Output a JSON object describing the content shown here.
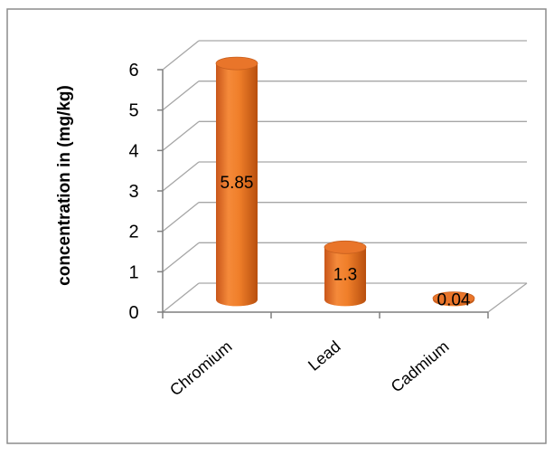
{
  "chart_data": {
    "type": "bar",
    "style": "3d-cylinder",
    "title": "",
    "xlabel": "",
    "ylabel": "concentration in (mg/kg)",
    "categories": [
      "Chromium",
      "Lead",
      "Cadmium"
    ],
    "values": [
      5.85,
      1.3,
      0.04
    ],
    "data_labels": [
      "5.85",
      "1.3",
      "0.04"
    ],
    "ylim": [
      0,
      6
    ],
    "yticks": [
      "0",
      "1",
      "2",
      "3",
      "4",
      "5",
      "6"
    ],
    "grid": true,
    "legend": "none",
    "colors": {
      "bar": "#f07f2a",
      "bar_dark": "#b84f0e",
      "grid": "#a6a6a6",
      "frame": "#8c8c8c"
    }
  }
}
